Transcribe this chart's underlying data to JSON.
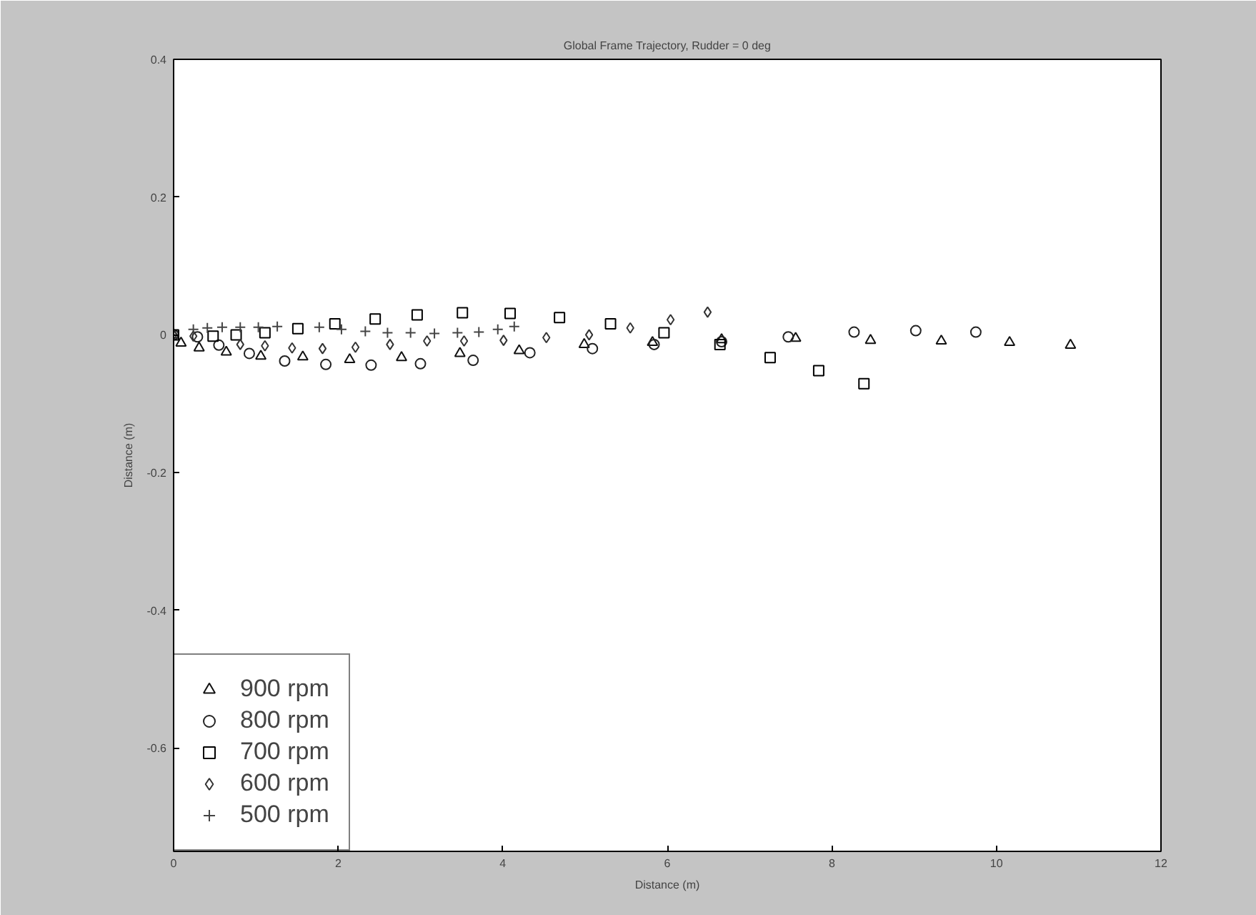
{
  "chart_data": {
    "type": "scatter",
    "title": "Global Frame Trajectory, Rudder = 0 deg",
    "xlabel": "Distance (m)",
    "ylabel": "Distance (m)",
    "xlim": [
      0,
      12
    ],
    "ylim": [
      -0.75,
      0.4
    ],
    "xticks": [
      0,
      2,
      4,
      6,
      8,
      10,
      12
    ],
    "yticks": [
      -0.6,
      -0.4,
      -0.2,
      0,
      0.2,
      0.4
    ],
    "grid": false,
    "legend": "bottom left",
    "series": [
      {
        "name": "900 rpm",
        "color": "#111111",
        "marker": "triangle",
        "x": [
          0,
          0.09,
          0.31,
          0.64,
          1.06,
          1.57,
          2.14,
          2.77,
          3.48,
          4.2,
          4.99,
          5.82,
          6.66,
          7.56,
          8.47,
          9.33,
          10.16,
          10.9
        ],
        "values": [
          0,
          -0.012,
          -0.019,
          -0.025,
          -0.031,
          -0.032,
          -0.036,
          -0.033,
          -0.027,
          -0.023,
          -0.014,
          -0.011,
          -0.007,
          -0.005,
          -0.008,
          -0.009,
          -0.011,
          -0.015
        ]
      },
      {
        "name": "800 rpm",
        "color": "#222222",
        "marker": "circle",
        "x": [
          0,
          0.29,
          0.55,
          0.92,
          1.35,
          1.85,
          2.4,
          3.0,
          3.64,
          4.33,
          5.09,
          5.84,
          6.66,
          7.47,
          8.27,
          9.02,
          9.75
        ],
        "values": [
          0,
          -0.003,
          -0.015,
          -0.027,
          -0.038,
          -0.043,
          -0.044,
          -0.042,
          -0.037,
          -0.026,
          -0.02,
          -0.014,
          -0.01,
          -0.003,
          0.004,
          0.006,
          0.004
        ]
      },
      {
        "name": "700 rpm",
        "color": "#000000",
        "marker": "square",
        "x": [
          0,
          0.48,
          0.76,
          1.11,
          1.51,
          1.96,
          2.45,
          2.96,
          3.51,
          4.09,
          4.69,
          5.31,
          5.96,
          6.64,
          7.25,
          7.84,
          8.39
        ],
        "values": [
          0,
          -0.002,
          0.0,
          0.003,
          0.009,
          0.016,
          0.023,
          0.029,
          0.032,
          0.031,
          0.025,
          0.016,
          0.003,
          -0.014,
          -0.033,
          -0.052,
          -0.071
        ]
      },
      {
        "name": "600 rpm",
        "color": "#333333",
        "marker": "diamond",
        "x": [
          0,
          0.24,
          0.81,
          1.11,
          1.44,
          1.81,
          2.21,
          2.63,
          3.08,
          3.53,
          4.01,
          4.53,
          5.05,
          5.55,
          6.04,
          6.49
        ],
        "values": [
          0,
          -0.002,
          -0.014,
          -0.016,
          -0.019,
          -0.02,
          -0.018,
          -0.014,
          -0.009,
          -0.009,
          -0.008,
          -0.004,
          0.0,
          0.01,
          0.022,
          0.033
        ]
      },
      {
        "name": "500 rpm",
        "color": "#444444",
        "marker": "cross",
        "x": [
          0,
          0.24,
          0.41,
          0.59,
          0.81,
          1.03,
          1.26,
          1.77,
          2.04,
          2.33,
          2.6,
          2.88,
          3.17,
          3.45,
          3.71,
          3.94,
          4.14
        ],
        "values": [
          0,
          0.008,
          0.01,
          0.011,
          0.011,
          0.011,
          0.012,
          0.011,
          0.008,
          0.005,
          0.003,
          0.003,
          0.002,
          0.003,
          0.004,
          0.008,
          0.012
        ]
      }
    ]
  }
}
